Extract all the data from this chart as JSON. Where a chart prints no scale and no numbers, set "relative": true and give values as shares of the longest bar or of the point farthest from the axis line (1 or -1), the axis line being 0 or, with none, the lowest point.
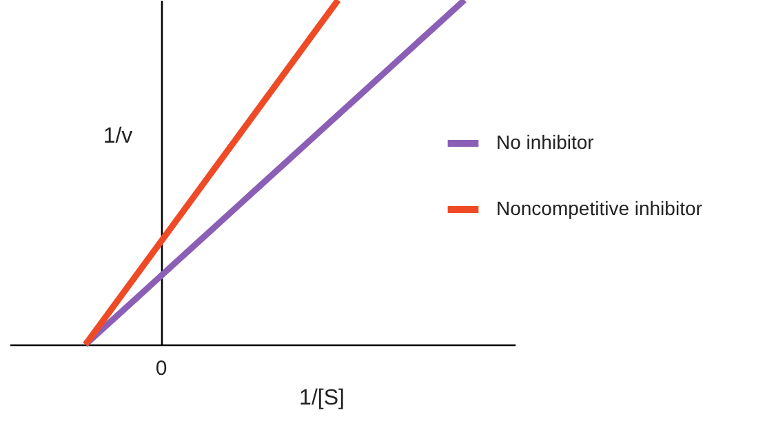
{
  "chart_data": {
    "type": "line",
    "xlabel": "1/[S]",
    "ylabel": "1/v",
    "relative": true,
    "annotations": [
      "0"
    ],
    "categories": [
      null,
      null,
      null,
      null,
      null,
      null,
      null,
      null,
      null,
      null,
      null,
      null,
      null,
      null,
      null,
      null,
      null,
      null,
      null,
      null,
      null
    ],
    "legend": "right",
    "marker": "none",
    "line_style": "solid",
    "series": [
      {
        "name": "No inhibitor",
        "color": "#8a5fb5",
        "values": [
          null,
          null,
          null,
          0,
          0.0667,
          0.1333,
          0.2,
          0.2667,
          0.3333,
          0.4,
          0.4667,
          0.5333,
          0.6,
          0.6667,
          0.7333,
          0.8,
          0.8667,
          0.9333,
          1,
          null,
          null
        ]
      },
      {
        "name": "Noncompetitive inhibitor",
        "color": "#ef4a26",
        "values": [
          null,
          null,
          null,
          0,
          0.1,
          0.2,
          0.3,
          0.4,
          0.5,
          0.6,
          0.7,
          0.8,
          0.9,
          1,
          null,
          null,
          null,
          null,
          null,
          null,
          null
        ]
      }
    ]
  }
}
